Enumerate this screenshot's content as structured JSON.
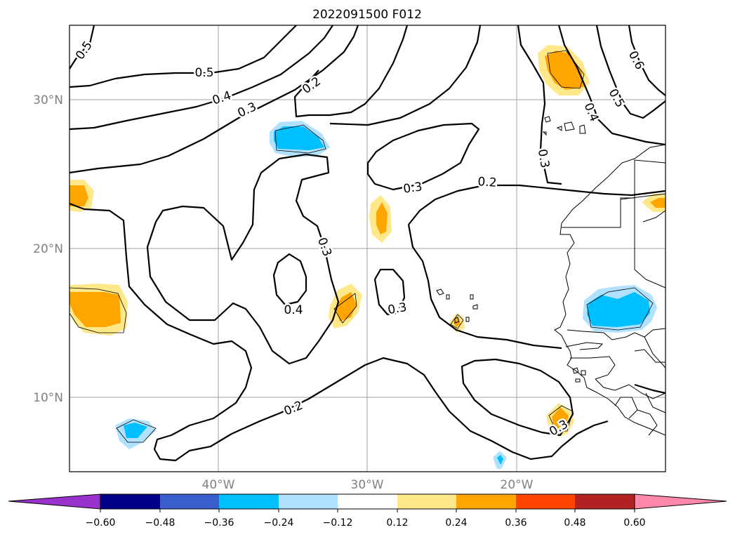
{
  "title": "2022091500 F012",
  "axes": {
    "lat_ticks": [
      "30°N",
      "20°N",
      "10°N"
    ],
    "lon_ticks": [
      "40°W",
      "30°W",
      "20°W"
    ]
  },
  "contour_labels": [
    "0.5",
    "0.5",
    "0.4",
    "0.3",
    "0.2",
    "0.3",
    "0.2",
    "0.3",
    "0.4",
    "0.3",
    "0.2",
    "0.3",
    "0.4",
    "0.5",
    "0.6",
    "0.3"
  ],
  "colorbar": {
    "ticks": [
      "−0.60",
      "−0.48",
      "−0.36",
      "−0.24",
      "−0.12",
      "0.12",
      "0.24",
      "0.36",
      "0.48",
      "0.60"
    ],
    "colors": [
      "#9932cc",
      "#00008b",
      "#3a5fcd",
      "#00bfff",
      "#b0e2ff",
      "#ffffff",
      "#ffe88a",
      "#ffa500",
      "#ff4500",
      "#b22222",
      "#ff88aa"
    ]
  },
  "shading_colors": {
    "light_blue": "#b0e2ff",
    "blue": "#00bfff",
    "light_yellow": "#ffe88a",
    "orange": "#ffa500"
  }
}
